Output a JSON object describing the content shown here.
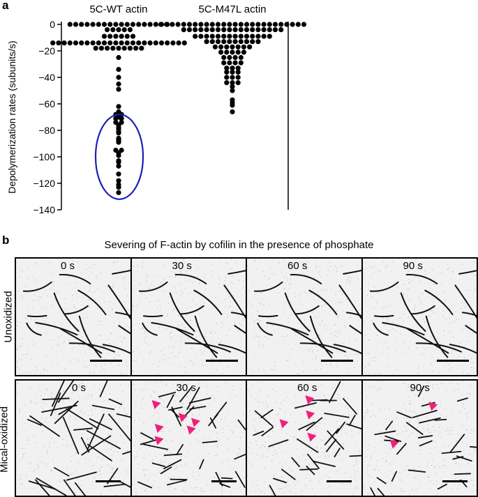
{
  "panel_a": {
    "label": "a"
  },
  "chart_data": {
    "type": "scatter",
    "subtype": "beeswarm",
    "title": "",
    "xlabel": "",
    "ylabel": "Depolymerization rates (subunits/s)",
    "ylim": [
      -140,
      0
    ],
    "yticks": [
      "0",
      "−20",
      "−40",
      "−60",
      "−80",
      "−100",
      "−120",
      "−140"
    ],
    "ytick_values": [
      0,
      -20,
      -40,
      -60,
      -80,
      -100,
      -120,
      -140
    ],
    "categories": [
      "5C-WT actin",
      "5C-M47L actin"
    ],
    "series": [
      {
        "name": "5C-WT actin",
        "color": "#000000",
        "values": [
          0,
          0,
          0,
          0,
          0,
          0,
          0,
          0,
          0,
          0,
          0,
          0,
          0,
          0,
          0,
          0,
          0,
          0,
          -4,
          -4,
          -4,
          -4,
          -4,
          -9,
          -9,
          -9,
          -9,
          -9,
          -9,
          -14,
          -14,
          -14,
          -14,
          -14,
          -14,
          -14,
          -14,
          -14,
          -14,
          -14,
          -14,
          -14,
          -14,
          -14,
          -14,
          -14,
          -14,
          -14,
          -14,
          -14,
          -14,
          -14,
          -14,
          -18,
          -18,
          -18,
          -18,
          -18,
          -18,
          -18,
          -18,
          -18,
          -25,
          -34,
          -40,
          -45,
          -49,
          -62,
          -66,
          -68,
          -68,
          -69,
          -70,
          -71,
          -71,
          -74,
          -74,
          -76,
          -78,
          -79,
          -81,
          -82,
          -86,
          -87,
          -88,
          -89,
          -95,
          -95,
          -97,
          -99,
          -103,
          -104,
          -107,
          -113,
          -118,
          -121,
          -123,
          -127
        ]
      },
      {
        "name": "5C-M47L actin",
        "color": "#000000",
        "values": [
          0,
          0,
          0,
          0,
          0,
          0,
          0,
          0,
          0,
          0,
          0,
          0,
          0,
          0,
          0,
          0,
          0,
          0,
          0,
          0,
          0,
          0,
          0,
          0,
          0,
          0,
          -4,
          -4,
          -4,
          -4,
          -4,
          -4,
          -4,
          -4,
          -4,
          -4,
          -4,
          -4,
          -4,
          -4,
          -4,
          -4,
          -4,
          -4,
          -9,
          -9,
          -9,
          -9,
          -9,
          -9,
          -9,
          -9,
          -9,
          -9,
          -9,
          -9,
          -9,
          -9,
          -13,
          -13,
          -13,
          -13,
          -13,
          -13,
          -13,
          -13,
          -13,
          -13,
          -17,
          -17,
          -17,
          -17,
          -17,
          -17,
          -17,
          -21,
          -21,
          -21,
          -21,
          -21,
          -25,
          -25,
          -25,
          -25,
          -29,
          -29,
          -29,
          -29,
          -33,
          -33,
          -33,
          -36,
          -36,
          -36,
          -40,
          -40,
          -40,
          -44,
          -44,
          -44,
          -47,
          -50,
          -57,
          -59,
          -61,
          -66
        ]
      }
    ],
    "annotation": {
      "type": "ellipse",
      "color": "#1c1fb5",
      "encloses_category": "5C-WT actin",
      "y_range": [
        -132,
        -68
      ]
    }
  },
  "panel_b": {
    "label": "b",
    "title": "Severing of F-actin by cofilin in the presence of phosphate",
    "rows": [
      {
        "label": "Unoxidized",
        "times": [
          "0 s",
          "30 s",
          "60 s",
          "90 s"
        ]
      },
      {
        "label": "Mical-oxidized",
        "times": [
          "0 s",
          "30 s",
          "60 s",
          "90 s"
        ]
      }
    ],
    "arrowhead_color": "#f0207a",
    "arrowhead_counts": [
      0,
      6,
      4,
      2
    ]
  }
}
